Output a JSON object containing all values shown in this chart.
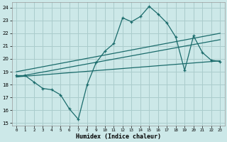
{
  "xlabel": "Humidex (Indice chaleur)",
  "bg_color": "#cce8e8",
  "grid_color": "#aacccc",
  "line_color": "#1a6b6b",
  "xlim": [
    -0.5,
    23.5
  ],
  "ylim": [
    14.8,
    24.4
  ],
  "xticks": [
    0,
    1,
    2,
    3,
    4,
    5,
    6,
    7,
    8,
    9,
    10,
    11,
    12,
    13,
    14,
    15,
    16,
    17,
    18,
    19,
    20,
    21,
    22,
    23
  ],
  "yticks": [
    15,
    16,
    17,
    18,
    19,
    20,
    21,
    22,
    23,
    24
  ],
  "main_x": [
    0,
    1,
    2,
    3,
    4,
    5,
    6,
    7,
    8,
    9,
    10,
    11,
    12,
    13,
    14,
    15,
    16,
    17,
    18,
    19,
    20,
    21,
    22,
    23
  ],
  "main_y": [
    18.7,
    18.7,
    18.2,
    17.7,
    17.6,
    17.2,
    16.1,
    15.3,
    18.0,
    19.7,
    20.6,
    21.2,
    23.2,
    22.9,
    23.3,
    24.1,
    23.5,
    22.8,
    21.7,
    19.1,
    21.8,
    20.5,
    19.9,
    19.8
  ],
  "line1_x": [
    0,
    23
  ],
  "line1_y": [
    19.0,
    22.0
  ],
  "line2_x": [
    0,
    23
  ],
  "line2_y": [
    18.6,
    21.5
  ],
  "line3_x": [
    0,
    23
  ],
  "line3_y": [
    18.6,
    19.85
  ]
}
